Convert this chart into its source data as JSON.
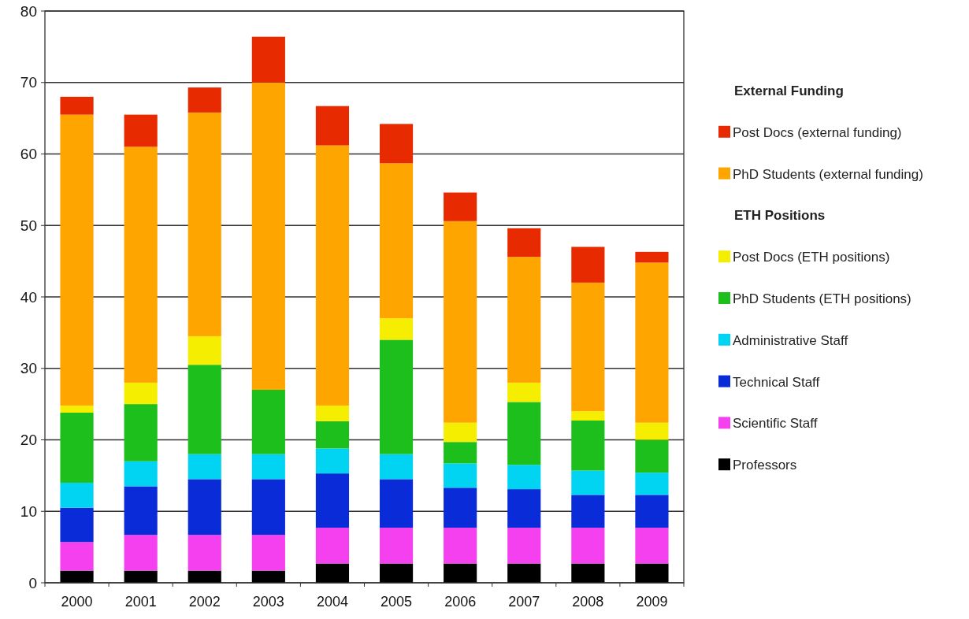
{
  "chart_data": {
    "type": "bar",
    "stacked": true,
    "categories": [
      "2000",
      "2001",
      "2002",
      "2003",
      "2004",
      "2005",
      "2006",
      "2007",
      "2008",
      "2009"
    ],
    "series": [
      {
        "name": "Professors",
        "color": "#000000",
        "values": [
          1.7,
          1.7,
          1.7,
          1.7,
          2.7,
          2.7,
          2.7,
          2.7,
          2.7,
          2.7
        ]
      },
      {
        "name": "Scientific Staff",
        "color": "#f540f0",
        "values": [
          4,
          5,
          5,
          5,
          5,
          5,
          5,
          5,
          5,
          5
        ]
      },
      {
        "name": "Technical Staff",
        "color": "#0a2bd8",
        "values": [
          4.8,
          6.8,
          7.8,
          7.8,
          7.6,
          6.8,
          5.6,
          5.4,
          4.6,
          4.6
        ]
      },
      {
        "name": "Administrative Staff",
        "color": "#00d4f2",
        "values": [
          3.5,
          3.5,
          3.5,
          3.5,
          3.5,
          3.5,
          3.4,
          3.4,
          3.4,
          3.1
        ]
      },
      {
        "name": "PhD Students (ETH positions)",
        "color": "#1cbf1c",
        "values": [
          9.8,
          8,
          12.5,
          9,
          3.8,
          16,
          3,
          8.8,
          7,
          4.6
        ]
      },
      {
        "name": "Post Docs (ETH positions)",
        "color": "#f6ee00",
        "values": [
          1,
          3,
          4,
          0,
          2.2,
          3,
          2.7,
          2.7,
          1.3,
          2.4
        ]
      },
      {
        "name": "PhD Students (external funding)",
        "color": "#ffa500",
        "values": [
          40.7,
          33,
          31.3,
          43,
          36.4,
          21.7,
          28.2,
          17.6,
          18,
          22.4
        ]
      },
      {
        "name": "Post Docs (external funding)",
        "color": "#e82a00",
        "values": [
          2.5,
          4.5,
          3.5,
          6.4,
          5.5,
          5.5,
          4,
          4,
          5,
          1.5
        ]
      }
    ],
    "annotations": [
      "External Funding",
      "ETH Positions"
    ],
    "ylim": [
      0,
      80
    ],
    "yticks": [
      0,
      10,
      20,
      30,
      40,
      50,
      60,
      70,
      80
    ],
    "grid": "y",
    "legend": "right"
  }
}
